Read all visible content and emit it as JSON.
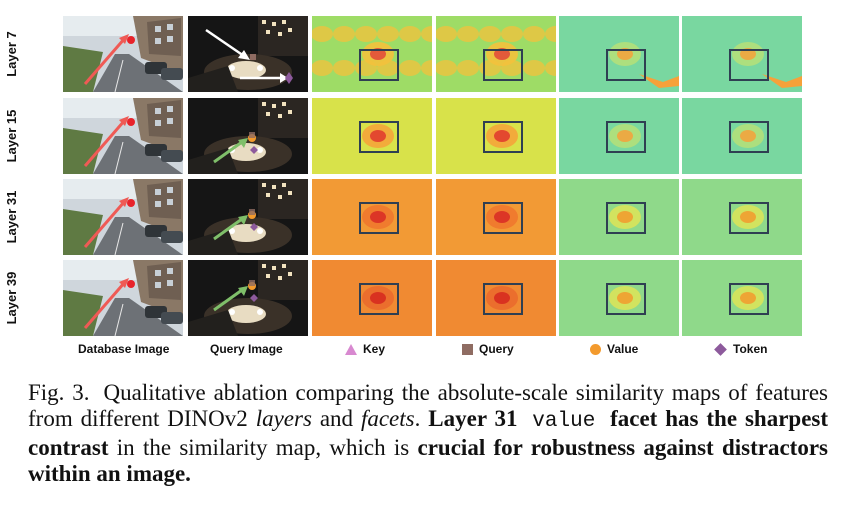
{
  "rows": [
    {
      "label": "Layer 7",
      "query_arrow": "white-marker"
    },
    {
      "label": "Layer 15",
      "query_arrow": "green"
    },
    {
      "label": "Layer 31",
      "query_arrow": "green"
    },
    {
      "label": "Layer 39",
      "query_arrow": "green"
    }
  ],
  "columns": {
    "database": "Database Image",
    "query": "Query Image",
    "key": "Key",
    "query_facet": "Query",
    "value": "Value",
    "token": "Token"
  },
  "legend_colors": {
    "key": "#d889d0",
    "query": "#8f6c62",
    "value": "#f39a2d",
    "token": "#8d5a9c"
  },
  "caption": {
    "fig_label": "Fig. 3.",
    "t1": "Qualitative ablation comparing the absolute-scale similarity maps of features from different DINOv2 ",
    "layers": "layers",
    "and": " and ",
    "facets": "facets",
    "t2": ". ",
    "b1": "Layer 31",
    "mono": " value ",
    "b2": "facet has the sharpest contrast",
    "t3": " in the similarity map, which is ",
    "b3": "crucial for robustness against distractors within an image."
  }
}
